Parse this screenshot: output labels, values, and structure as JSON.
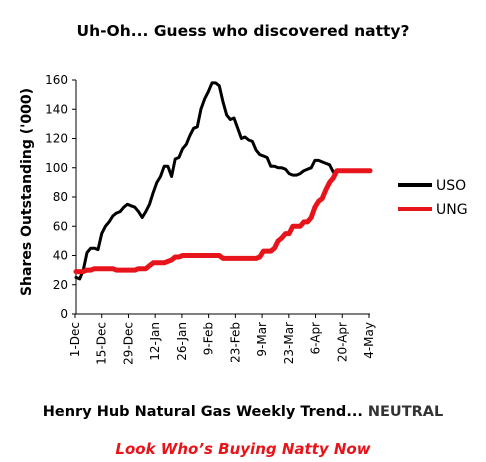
{
  "header": {
    "title": "Uh-Oh... Guess who discovered natty?"
  },
  "footer": {
    "line1_text": "Henry Hub Natural Gas Weekly Trend... ",
    "line1_emphasis": "NEUTRAL",
    "line2_text": "Look Who’s Buying Natty Now",
    "line2_color": "#e8141b"
  },
  "chart_data": {
    "type": "line",
    "title": "",
    "xlabel": "",
    "ylabel": "Shares Outstanding ('000)",
    "ylim": [
      0,
      160
    ],
    "yticks": [
      0,
      20,
      40,
      60,
      80,
      100,
      120,
      140,
      160
    ],
    "grid": false,
    "legend_position": "right",
    "x_ticks": [
      "1-Dec",
      "15-Dec",
      "29-Dec",
      "12-Jan",
      "26-Jan",
      "9-Feb",
      "23-Feb",
      "9-Mar",
      "23-Mar",
      "6-Apr",
      "20-Apr",
      "4-May"
    ],
    "x_range_days": [
      0,
      160
    ],
    "series": [
      {
        "name": "USO",
        "color": "#000000",
        "x": [
          0,
          2,
          4,
          6,
          8,
          10,
          12,
          14,
          16,
          18,
          20,
          22,
          24,
          26,
          28,
          30,
          32,
          34,
          36,
          38,
          40,
          42,
          44,
          46,
          48,
          50,
          52,
          54,
          56,
          58,
          60,
          62,
          64,
          66,
          68,
          70,
          72,
          74,
          76,
          78,
          80,
          82,
          84,
          86,
          88,
          90,
          92,
          94,
          96,
          98,
          100,
          102,
          104,
          106,
          108,
          110,
          112,
          114,
          116,
          118,
          120,
          122,
          124,
          126,
          128,
          130,
          132,
          134,
          136,
          138,
          140,
          142,
          144,
          146,
          148,
          150,
          152,
          154,
          156,
          158,
          160
        ],
        "values": [
          25,
          24,
          30,
          42,
          45,
          45,
          44,
          55,
          60,
          63,
          67,
          69,
          70,
          73,
          75,
          74,
          73,
          70,
          66,
          70,
          75,
          83,
          90,
          94,
          101,
          101,
          94,
          106,
          107,
          113,
          116,
          122,
          127,
          128,
          140,
          147,
          152,
          158,
          158,
          156,
          145,
          136,
          133,
          134,
          127,
          120,
          121,
          119,
          118,
          112,
          109,
          108,
          107,
          101,
          101,
          100,
          100,
          99,
          96,
          95,
          95,
          96,
          98,
          99,
          100,
          105,
          105,
          104,
          103,
          102,
          97,
          98,
          98,
          98,
          98,
          98,
          98,
          98,
          98,
          98,
          98
        ]
      },
      {
        "name": "UNG",
        "color": "#e8141b",
        "x": [
          0,
          2,
          4,
          6,
          8,
          10,
          12,
          14,
          16,
          18,
          20,
          22,
          24,
          26,
          28,
          30,
          32,
          34,
          36,
          38,
          40,
          42,
          44,
          46,
          48,
          50,
          52,
          54,
          56,
          58,
          60,
          62,
          64,
          66,
          68,
          70,
          72,
          74,
          76,
          78,
          80,
          82,
          84,
          86,
          88,
          90,
          92,
          94,
          96,
          98,
          100,
          102,
          104,
          106,
          108,
          110,
          112,
          114,
          116,
          118,
          120,
          122,
          124,
          126,
          128,
          130,
          132,
          134,
          136,
          138,
          140,
          142,
          144,
          146,
          148,
          150,
          152,
          154,
          156,
          158,
          160
        ],
        "values": [
          29,
          29,
          29,
          30,
          30,
          31,
          31,
          31,
          31,
          31,
          31,
          30,
          30,
          30,
          30,
          30,
          30,
          31,
          31,
          31,
          33,
          35,
          35,
          35,
          35,
          36,
          37,
          39,
          39,
          40,
          40,
          40,
          40,
          40,
          40,
          40,
          40,
          40,
          40,
          40,
          38,
          38,
          38,
          38,
          38,
          38,
          38,
          38,
          38,
          38,
          39,
          43,
          43,
          43,
          45,
          50,
          52,
          55,
          55,
          60,
          60,
          60,
          63,
          63,
          66,
          73,
          77,
          79,
          85,
          90,
          93,
          98,
          98,
          98,
          98,
          98,
          98,
          98,
          98,
          98,
          98
        ]
      }
    ]
  }
}
